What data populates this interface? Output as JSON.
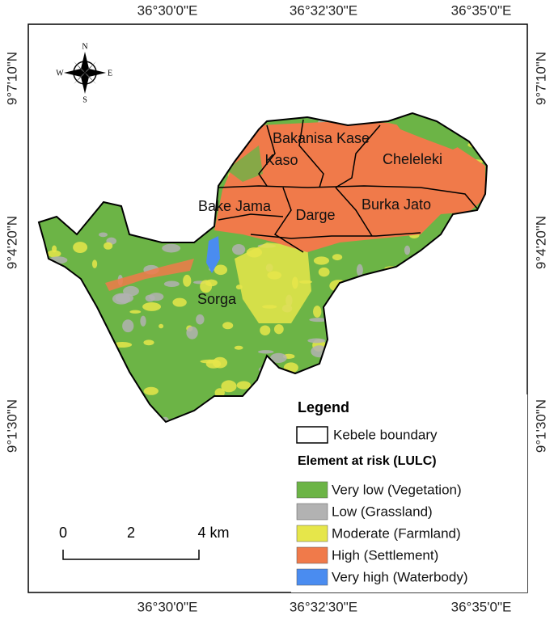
{
  "axes": {
    "top": [
      "36°30'0\"E",
      "36°32'30\"E",
      "36°35'0\"E"
    ],
    "bottom": [
      "36°30'0\"E",
      "36°32'30\"E",
      "36°35'0\"E"
    ],
    "left": [
      "9°7'10\"N",
      "9°4'20\"N",
      "9°1'30\"N"
    ],
    "right": [
      "9°7'10\"N",
      "9°4'20\"N",
      "9°1'30\"N"
    ]
  },
  "compass": {
    "n": "N",
    "s": "S",
    "e": "E",
    "w": "W"
  },
  "kebeles": [
    "Bakanisa Kase",
    "Kaso",
    "Cheleleki",
    "Bake Jama",
    "Darge",
    "Burka Jato",
    "Sorga"
  ],
  "legend": {
    "title": "Legend",
    "boundary": "Kebele boundary",
    "subtitle": "Element at risk (LULC)",
    "items": [
      {
        "label": "Very low (Vegetation)",
        "color": "#6cb446"
      },
      {
        "label": "Low (Grassland)",
        "color": "#b2b2b2"
      },
      {
        "label": "Moderate (Farmland)",
        "color": "#e6e64a"
      },
      {
        "label": "High (Settlement)",
        "color": "#f07a4a"
      },
      {
        "label": "Very high (Waterbody)",
        "color": "#4a8cf0"
      }
    ]
  },
  "scale_bar": {
    "labels": [
      "0",
      "2",
      "4 km"
    ]
  }
}
